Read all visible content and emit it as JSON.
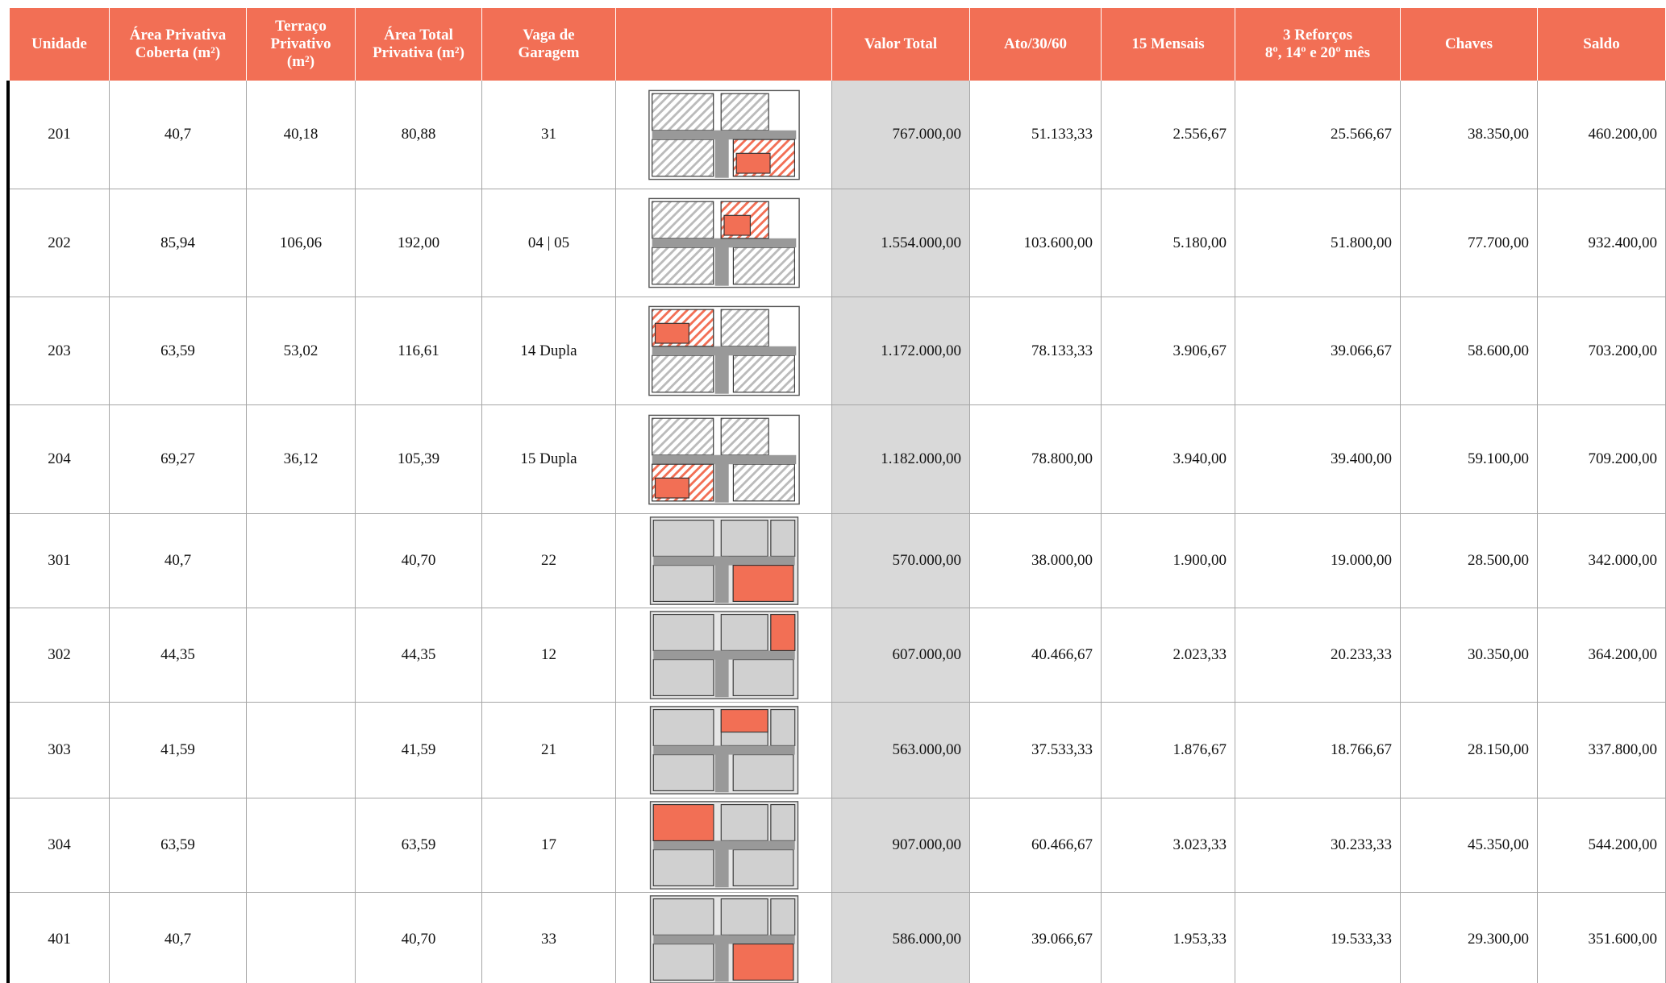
{
  "table": {
    "columns": [
      [
        "Unidade"
      ],
      [
        "Área Privativa",
        "Coberta (m²)"
      ],
      [
        "Terraço",
        "Privativo",
        "(m²)"
      ],
      [
        "Área Total",
        "Privativa (m²)"
      ],
      [
        "Vaga de",
        "Garagem"
      ],
      [
        "Valor Total"
      ],
      [
        "Ato/30/60"
      ],
      [
        "15 Mensais"
      ],
      [
        "3 Reforços",
        "8º, 14º e 20º mês"
      ],
      [
        "Chaves"
      ],
      [
        "Saldo"
      ]
    ],
    "rows": [
      [
        "201",
        "40,7",
        "40,18",
        "80,88",
        "31",
        "767.000,00",
        "51.133,33",
        "2.556,67",
        "25.566,67",
        "38.350,00",
        "460.200,00"
      ],
      [
        "202",
        "85,94",
        "106,06",
        "192,00",
        "04 | 05",
        "1.554.000,00",
        "103.600,00",
        "5.180,00",
        "51.800,00",
        "77.700,00",
        "932.400,00"
      ],
      [
        "203",
        "63,59",
        "53,02",
        "116,61",
        "14 Dupla",
        "1.172.000,00",
        "78.133,33",
        "3.906,67",
        "39.066,67",
        "58.600,00",
        "703.200,00"
      ],
      [
        "204",
        "69,27",
        "36,12",
        "105,39",
        "15 Dupla",
        "1.182.000,00",
        "78.800,00",
        "3.940,00",
        "39.400,00",
        "59.100,00",
        "709.200,00"
      ],
      [
        "301",
        "40,7",
        null,
        "40,70",
        "22",
        "570.000,00",
        "38.000,00",
        "1.900,00",
        "19.000,00",
        "28.500,00",
        "342.000,00"
      ],
      [
        "302",
        "44,35",
        null,
        "44,35",
        "12",
        "607.000,00",
        "40.466,67",
        "2.023,33",
        "20.233,33",
        "30.350,00",
        "364.200,00"
      ],
      [
        "303",
        "41,59",
        null,
        "41,59",
        "21",
        "563.000,00",
        "37.533,33",
        "1.876,67",
        "18.766,67",
        "28.150,00",
        "337.800,00"
      ],
      [
        "304",
        "63,59",
        null,
        "63,59",
        "17",
        "907.000,00",
        "60.466,67",
        "3.023,33",
        "30.233,33",
        "45.350,00",
        "544.200,00"
      ],
      [
        "401",
        "40,7",
        null,
        "40,70",
        "33",
        "586.000,00",
        "39.066,67",
        "1.953,33",
        "19.533,33",
        "29.300,00",
        "351.600,00"
      ]
    ]
  }
}
